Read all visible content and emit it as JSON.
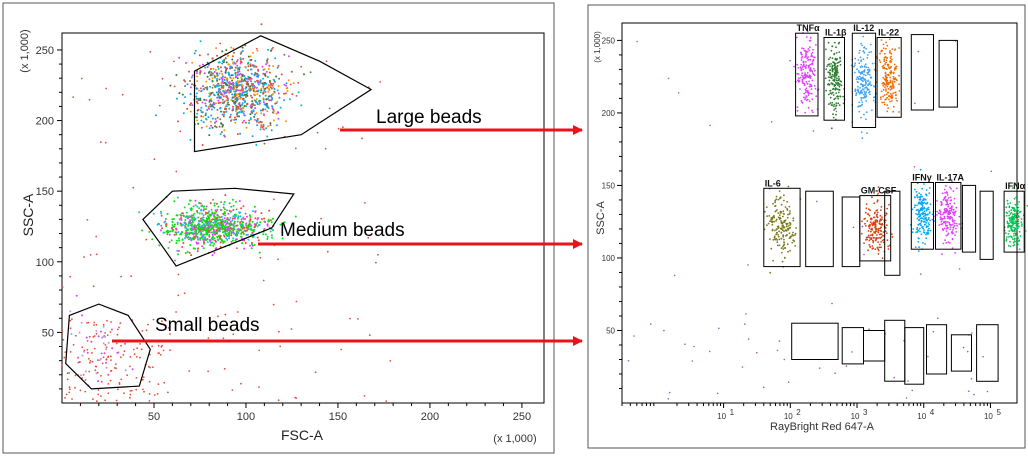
{
  "colors": {
    "arrow": "#e8141a",
    "gate": "#000000",
    "panel_border": "#555555",
    "scatter_background": "#e74c3c"
  },
  "annotations": {
    "large": "Large beads",
    "medium": "Medium beads",
    "small": "Small beads"
  },
  "chart_data": [
    {
      "type": "scatter",
      "panel": "left",
      "xlabel": "FSC-A",
      "ylabel": "SSC-A",
      "x_multiplier": "(x 1,000)",
      "y_multiplier": "(x 1,000)",
      "xlim": [
        0,
        262
      ],
      "ylim": [
        0,
        262
      ],
      "x_ticks": [
        50,
        100,
        150,
        200,
        250
      ],
      "y_ticks": [
        50,
        100,
        150,
        200,
        250
      ],
      "gates": [
        {
          "name": "large-beads-gate",
          "polygon": [
            [
              72,
              235
            ],
            [
              108,
              260
            ],
            [
              140,
              242
            ],
            [
              168,
              222
            ],
            [
              130,
              190
            ],
            [
              72,
              178
            ]
          ]
        },
        {
          "name": "medium-beads-gate",
          "polygon": [
            [
              44,
              130
            ],
            [
              60,
              150
            ],
            [
              94,
              152
            ],
            [
              126,
              148
            ],
            [
              114,
              124
            ],
            [
              62,
              97
            ],
            [
              54,
              112
            ]
          ]
        },
        {
          "name": "small-beads-gate",
          "polygon": [
            [
              4,
              62
            ],
            [
              20,
              70
            ],
            [
              36,
              62
            ],
            [
              48,
              38
            ],
            [
              42,
              12
            ],
            [
              16,
              10
            ],
            [
              2,
              28
            ]
          ]
        }
      ],
      "clusters": [
        {
          "name": "large",
          "cx": 95,
          "cy": 220,
          "sx": 13,
          "sy": 13,
          "colors": [
            "#ff9800",
            "#2196f3",
            "#e040fb",
            "#2e7d32",
            "#e74c3c",
            "#00bcd4",
            "#8d6e63"
          ]
        },
        {
          "name": "medium",
          "cx": 82,
          "cy": 125,
          "sx": 14,
          "sy": 7,
          "colors": [
            "#00e600",
            "#00e600",
            "#2ecc40",
            "#e040fb",
            "#29b6f6",
            "#e74c3c"
          ]
        },
        {
          "name": "small",
          "cx": 20,
          "cy": 38,
          "sx": 8,
          "sy": 14,
          "colors": [
            "#e040fb",
            "#b39ddb"
          ]
        }
      ]
    },
    {
      "type": "scatter",
      "panel": "right",
      "xlabel": "RayBright Red 647-A",
      "ylabel": "SSC-A",
      "y_multiplier": "(x 1,000)",
      "x_scale": "log",
      "xlim": [
        0.3,
        250000
      ],
      "ylim": [
        0,
        262
      ],
      "x_ticks": [
        {
          "value": 10,
          "base": "10",
          "exp": "1"
        },
        {
          "value": 100,
          "base": "10",
          "exp": "2"
        },
        {
          "value": 1000,
          "base": "10",
          "exp": "3"
        },
        {
          "value": 10000,
          "base": "10",
          "exp": "4"
        },
        {
          "value": 100000,
          "base": "10",
          "exp": "5"
        }
      ],
      "y_ticks": [
        50,
        100,
        150,
        200,
        250
      ],
      "gates": [
        {
          "label": "TNFα",
          "x": [
            120,
            260
          ],
          "y": [
            198,
            255
          ],
          "color": "#e040fb"
        },
        {
          "label": "IL-1β",
          "x": [
            320,
            650
          ],
          "y": [
            195,
            252
          ],
          "color": "#2e7d32"
        },
        {
          "label": "IL-12",
          "x": [
            850,
            1900
          ],
          "y": [
            190,
            255
          ],
          "color": "#42a5f5"
        },
        {
          "label": "IL-22",
          "x": [
            2000,
            4600
          ],
          "y": [
            197,
            252
          ],
          "color": "#ef6c00"
        },
        {
          "label": "",
          "x": [
            6500,
            14000
          ],
          "y": [
            202,
            254
          ]
        },
        {
          "label": "",
          "x": [
            17000,
            32000
          ],
          "y": [
            204,
            250
          ]
        },
        {
          "label": "IL-6",
          "x": [
            40,
            140
          ],
          "y": [
            94,
            148
          ],
          "color": "#7a7a1a"
        },
        {
          "label": "",
          "x": [
            170,
            440
          ],
          "y": [
            94,
            146
          ]
        },
        {
          "label": "",
          "x": [
            600,
            1100
          ],
          "y": [
            94,
            142
          ]
        },
        {
          "label": "GM-CSF",
          "x": [
            1100,
            3200
          ],
          "y": [
            98,
            143
          ],
          "color": "#d84315"
        },
        {
          "label": "",
          "x": [
            2600,
            4400
          ],
          "y": [
            88,
            146
          ]
        },
        {
          "label": "IFNγ",
          "x": [
            6500,
            14000
          ],
          "y": [
            106,
            152
          ],
          "color": "#03a9f4"
        },
        {
          "label": "IL-17A",
          "x": [
            15000,
            36000
          ],
          "y": [
            106,
            152
          ],
          "color": "#e040fb"
        },
        {
          "label": "",
          "x": [
            38000,
            60000
          ],
          "y": [
            104,
            150
          ]
        },
        {
          "label": "",
          "x": [
            70000,
            110000
          ],
          "y": [
            99,
            146
          ]
        },
        {
          "label": "IFNα",
          "x": [
            160000,
            320000
          ],
          "y": [
            104,
            146
          ],
          "color": "#00c853"
        },
        {
          "label": "",
          "x": [
            105,
            520
          ],
          "y": [
            30,
            55
          ]
        },
        {
          "label": "",
          "x": [
            600,
            1250
          ],
          "y": [
            27,
            52
          ]
        },
        {
          "label": "",
          "x": [
            1250,
            2600
          ],
          "y": [
            29,
            50
          ]
        },
        {
          "label": "",
          "x": [
            2600,
            5200
          ],
          "y": [
            15,
            57
          ]
        },
        {
          "label": "",
          "x": [
            5200,
            10000
          ],
          "y": [
            13,
            52
          ]
        },
        {
          "label": "",
          "x": [
            11000,
            22000
          ],
          "y": [
            20,
            54
          ]
        },
        {
          "label": "",
          "x": [
            26000,
            52000
          ],
          "y": [
            22,
            47
          ]
        },
        {
          "label": "",
          "x": [
            62000,
            130000
          ],
          "y": [
            15,
            54
          ]
        }
      ]
    }
  ]
}
